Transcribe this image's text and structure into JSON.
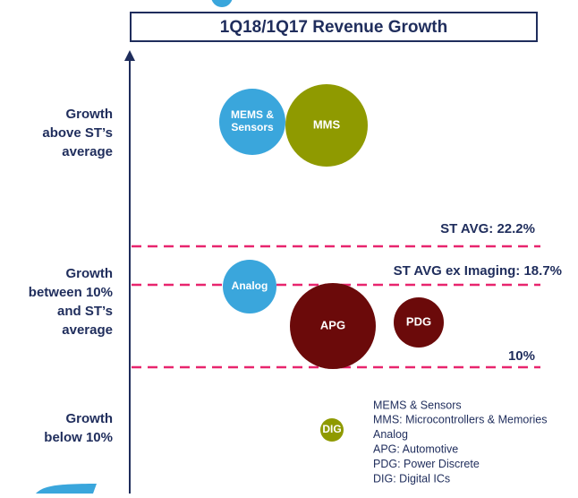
{
  "title": "1Q18/1Q17 Revenue Growth",
  "zones": [
    {
      "lines": [
        "Growth",
        "above ST’s",
        "average"
      ]
    },
    {
      "lines": [
        "Growth",
        "between 10%",
        "and ST’s",
        "average"
      ]
    },
    {
      "lines": [
        "Growth",
        "below 10%"
      ]
    }
  ],
  "reference_lines": [
    {
      "label": "ST AVG: 22.2%"
    },
    {
      "label": "ST AVG ex Imaging: 18.7%"
    },
    {
      "label": "10%"
    }
  ],
  "bubbles": [
    {
      "lines": [
        "MEMS &",
        "Sensors"
      ]
    },
    {
      "lines": [
        "MMS"
      ]
    },
    {
      "lines": [
        "Analog"
      ]
    },
    {
      "lines": [
        "APG"
      ]
    },
    {
      "lines": [
        "PDG"
      ]
    },
    {
      "lines": [
        "DIG"
      ]
    }
  ],
  "legend": [
    "MEMS & Sensors",
    "MMS: Microcontrollers & Memories",
    "Analog",
    "APG: Automotive",
    "PDG: Power Discrete",
    "DIG: Digital ICs"
  ]
}
